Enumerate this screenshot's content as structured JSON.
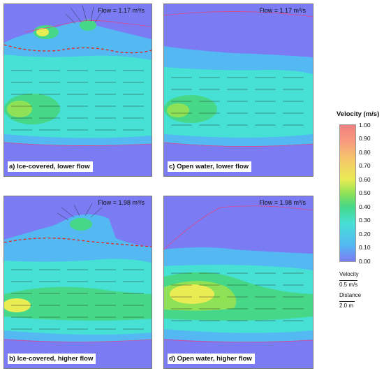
{
  "panels": [
    {
      "id": "a",
      "flow": "Flow = 1.17 m³/s",
      "caption": "a) Ice-covered, lower flow"
    },
    {
      "id": "b",
      "flow": "Flow = 1.98 m³/s",
      "caption": "b) Ice-covered, higher flow"
    },
    {
      "id": "c",
      "flow": "Flow = 1.17 m³/s",
      "caption": "c) Open water, lower flow"
    },
    {
      "id": "d",
      "flow": "Flow = 1.98 m³/s",
      "caption": "d) Open water, higher flow"
    }
  ],
  "legend": {
    "title": "Velocity (m/s)",
    "ticks": [
      "1.00",
      "0.90",
      "0.80",
      "0.70",
      "0.60",
      "0.50",
      "0.40",
      "0.30",
      "0.20",
      "0.10",
      "0.00"
    ],
    "velocity_label": "Velocity",
    "velocity_value": "0.5 m/s",
    "distance_label": "Distance",
    "distance_value": "2.0 m"
  },
  "colors": {
    "background": "#7b7bf4",
    "low": "#54b8f3",
    "mid": "#47e0d5",
    "green": "#46d888",
    "high": "#e9ec53",
    "ice_boundary": "#e3271c",
    "bank_line": "#d94a8a"
  }
}
